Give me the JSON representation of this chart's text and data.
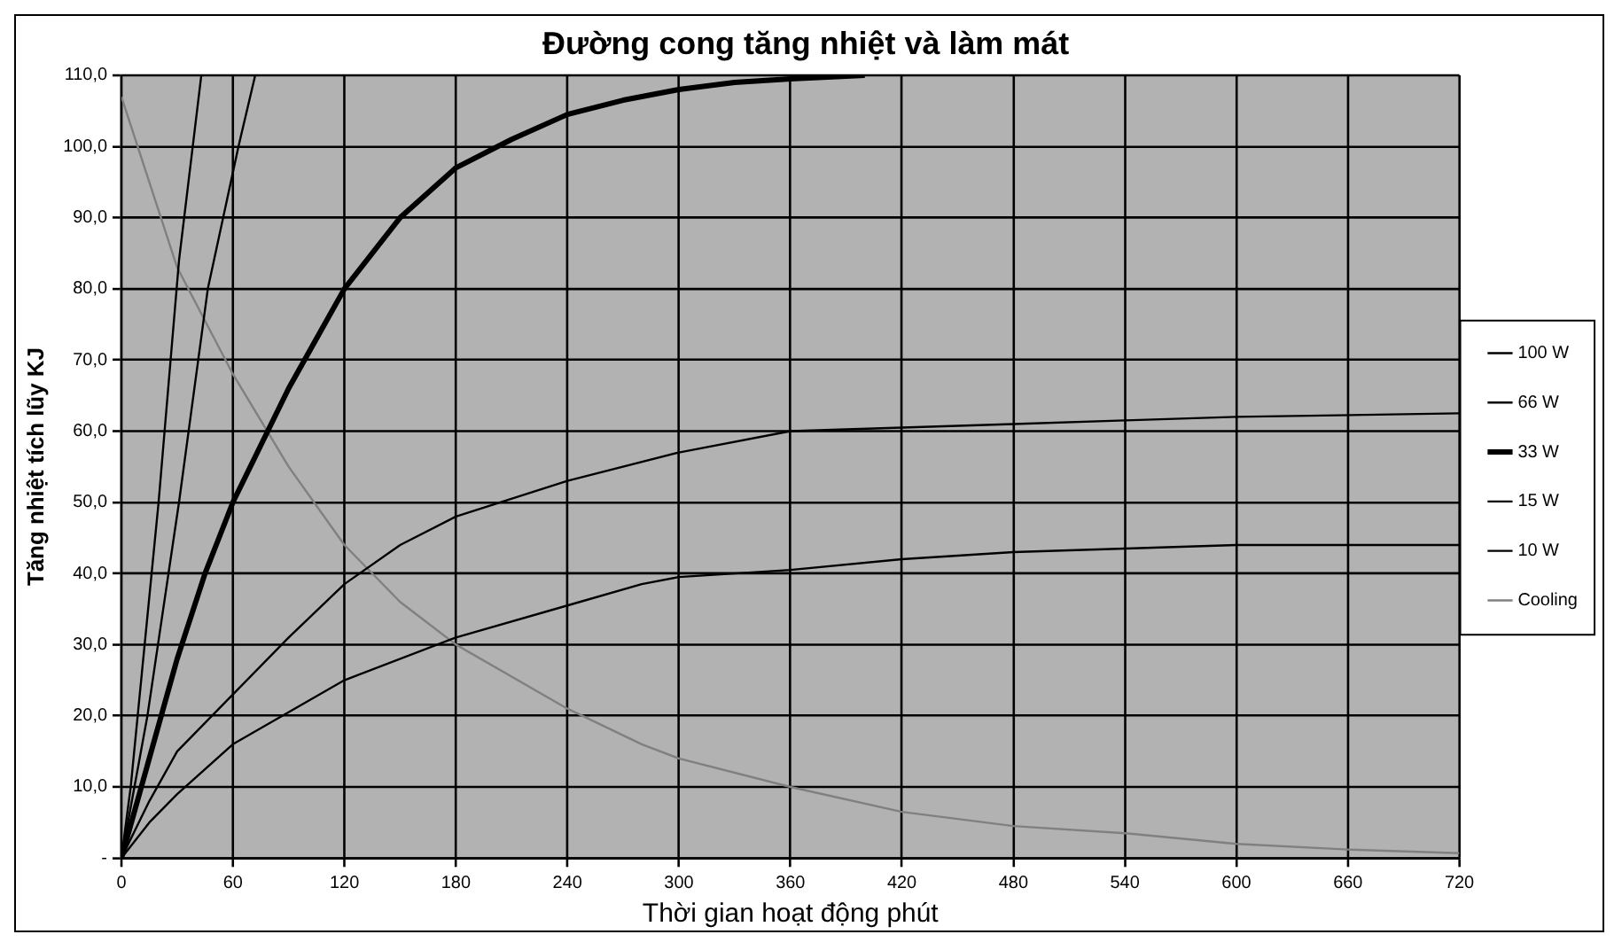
{
  "chart_data": {
    "type": "line",
    "title": "Đường cong tăng nhiệt và làm mát",
    "xlabel": "Thời gian hoạt động phút",
    "ylabel": "Tăng nhiệt tích lũy KJ",
    "xlim": [
      0,
      720
    ],
    "xticks": [
      0,
      60,
      120,
      180,
      240,
      300,
      360,
      420,
      480,
      540,
      600,
      660,
      720
    ],
    "ylim": [
      0,
      110
    ],
    "yticks": [
      {
        "value": 0,
        "label": "-"
      },
      {
        "value": 10,
        "label": "10,0"
      },
      {
        "value": 20,
        "label": "20,0"
      },
      {
        "value": 30,
        "label": "30,0"
      },
      {
        "value": 40,
        "label": "40,0"
      },
      {
        "value": 50,
        "label": "50,0"
      },
      {
        "value": 60,
        "label": "60,0"
      },
      {
        "value": 70,
        "label": "70,0"
      },
      {
        "value": 80,
        "label": "80,0"
      },
      {
        "value": 90,
        "label": "90,0"
      },
      {
        "value": 100,
        "label": "100,0"
      },
      {
        "value": 110,
        "label": "110,0"
      }
    ],
    "grid": true,
    "legend": "right",
    "marker": "none",
    "line_style": "solid",
    "series": [
      {
        "name": "100 W",
        "color": "#000000",
        "x": [
          0,
          5,
          20,
          31,
          43
        ],
        "values": [
          0,
          10,
          50,
          84,
          110
        ]
      },
      {
        "name": "66 W",
        "color": "#000000",
        "x": [
          0,
          14,
          31,
          46.5,
          63,
          72
        ],
        "values": [
          0,
          20,
          50,
          80,
          100,
          110
        ]
      },
      {
        "name": "33 W",
        "color": "#000000",
        "x": [
          0,
          15,
          30,
          45,
          60,
          75,
          90,
          105,
          120,
          150,
          180,
          210,
          240,
          270,
          300,
          330,
          360,
          400
        ],
        "values": [
          0,
          14,
          28,
          40,
          50,
          58,
          66,
          73,
          80,
          90,
          97,
          101,
          104.5,
          106.5,
          108,
          109,
          109.5,
          110
        ]
      },
      {
        "name": "15 W",
        "color": "#000000",
        "x": [
          0,
          15,
          30,
          60,
          90,
          120,
          150,
          180,
          240,
          300,
          360,
          420,
          480,
          540,
          600,
          720
        ],
        "values": [
          0,
          8,
          15,
          23,
          31,
          38.5,
          44,
          48,
          53,
          57,
          60,
          60.5,
          61,
          61.5,
          62,
          62.5
        ]
      },
      {
        "name": "10 W",
        "color": "#000000",
        "x": [
          0,
          15,
          30,
          60,
          120,
          180,
          240,
          280,
          300,
          360,
          420,
          480,
          540,
          600,
          720
        ],
        "values": [
          0,
          5,
          9,
          16,
          25,
          31,
          35.5,
          38.5,
          39.5,
          40.5,
          42,
          43,
          43.5,
          44,
          44
        ]
      },
      {
        "name": "Cooling",
        "color": "#808080",
        "x": [
          0,
          30,
          60,
          90,
          120,
          150,
          180,
          240,
          280,
          300,
          360,
          420,
          480,
          540,
          600,
          660,
          720
        ],
        "values": [
          107,
          83,
          68,
          55,
          44,
          36,
          30,
          21,
          16,
          14,
          10,
          6.5,
          4.5,
          3.5,
          2,
          1.2,
          0.7
        ]
      }
    ]
  }
}
